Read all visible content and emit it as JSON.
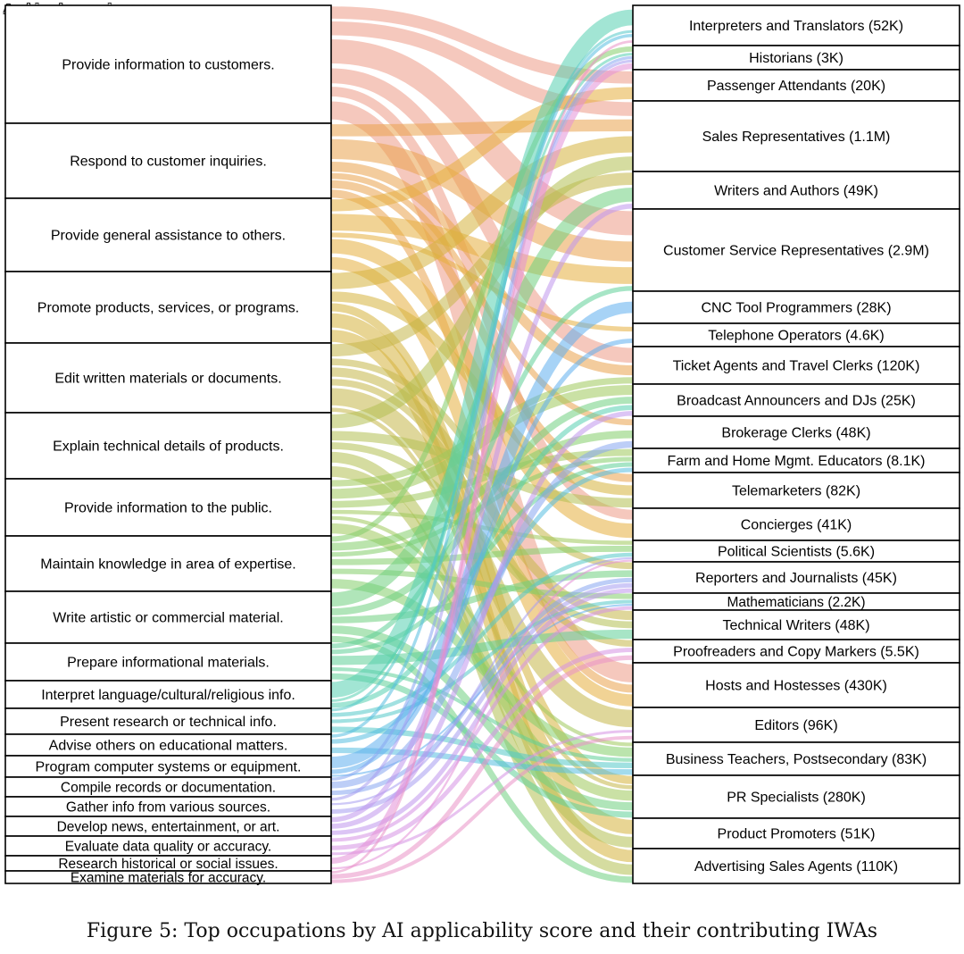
{
  "watermark": "Archived on meiguo.com",
  "caption": "Figure 5: Top occupations by AI applicability score and their contributing IWAs",
  "iwas": [
    {
      "label": "Provide information to customers.",
      "color": "#ec9a86"
    },
    {
      "label": "Respond to customer inquiries.",
      "color": "#e9a34c"
    },
    {
      "label": "Provide general assistance to others.",
      "color": "#e5ae3e"
    },
    {
      "label": "Promote products, services, or programs.",
      "color": "#d5b23d"
    },
    {
      "label": "Edit written materials or documents.",
      "color": "#c4b748"
    },
    {
      "label": "Explain technical details of products.",
      "color": "#b2c052"
    },
    {
      "label": "Provide information to the public.",
      "color": "#9ec85b"
    },
    {
      "label": "Maintain knowledge in area of expertise.",
      "color": "#84cd6a"
    },
    {
      "label": "Write artistic or commercial material.",
      "color": "#6fcf7f"
    },
    {
      "label": "Prepare informational materials.",
      "color": "#5fd098"
    },
    {
      "label": "Interpret language/cultural/religious info.",
      "color": "#56cfb1"
    },
    {
      "label": "Present research or technical info.",
      "color": "#54c9c9"
    },
    {
      "label": "Advise others on educational matters.",
      "color": "#55bde0"
    },
    {
      "label": "Program computer systems or equipment.",
      "color": "#5eaeee"
    },
    {
      "label": "Compile records or documentation.",
      "color": "#86a5f1"
    },
    {
      "label": "Gather info from various sources.",
      "color": "#a69cf0"
    },
    {
      "label": "Develop news, entertainment, or art.",
      "color": "#c096ec"
    },
    {
      "label": "Evaluate data quality or accuracy.",
      "color": "#d592e4"
    },
    {
      "label": "Research historical or social issues.",
      "color": "#e38fd7"
    },
    {
      "label": "Examine materials for accuracy.",
      "color": "#ea92c6"
    }
  ],
  "occupations": [
    {
      "label": "Interpreters and Translators (52K)"
    },
    {
      "label": "Historians (3K)"
    },
    {
      "label": "Passenger Attendants (20K)"
    },
    {
      "label": "Sales Representatives (1.1M)"
    },
    {
      "label": "Writers and Authors (49K)"
    },
    {
      "label": "Customer Service Representatives (2.9M)"
    },
    {
      "label": "CNC Tool Programmers (28K)"
    },
    {
      "label": "Telephone Operators (4.6K)"
    },
    {
      "label": "Ticket Agents and Travel Clerks (120K)"
    },
    {
      "label": "Broadcast Announcers and DJs (25K)"
    },
    {
      "label": "Brokerage Clerks (48K)"
    },
    {
      "label": "Farm and Home Mgmt. Educators (8.1K)"
    },
    {
      "label": "Telemarketers (82K)"
    },
    {
      "label": "Concierges (41K)"
    },
    {
      "label": "Political Scientists (5.6K)"
    },
    {
      "label": "Reporters and Journalists (45K)"
    },
    {
      "label": "Mathematicians (2.2K)"
    },
    {
      "label": "Technical Writers (48K)"
    },
    {
      "label": "Proofreaders and Copy Markers (5.5K)"
    },
    {
      "label": "Hosts and Hostesses (430K)"
    },
    {
      "label": "Editors (96K)"
    },
    {
      "label": "Business Teachers, Postsecondary (83K)"
    },
    {
      "label": "PR Specialists (280K)"
    },
    {
      "label": "Product Promoters (51K)"
    },
    {
      "label": "Advertising Sales Agents (110K)"
    }
  ],
  "links": [
    {
      "from": 0,
      "to": 2,
      "weight": 5
    },
    {
      "from": 0,
      "to": 3,
      "weight": 6
    },
    {
      "from": 0,
      "to": 5,
      "weight": 10
    },
    {
      "from": 0,
      "to": 8,
      "weight": 7
    },
    {
      "from": 0,
      "to": 19,
      "weight": 9
    },
    {
      "from": 0,
      "to": 13,
      "weight": 4
    },
    {
      "from": 1,
      "to": 3,
      "weight": 6
    },
    {
      "from": 1,
      "to": 5,
      "weight": 10
    },
    {
      "from": 1,
      "to": 8,
      "weight": 5
    },
    {
      "from": 1,
      "to": 12,
      "weight": 4
    },
    {
      "from": 1,
      "to": 19,
      "weight": 4
    },
    {
      "from": 1,
      "to": 10,
      "weight": 3
    },
    {
      "from": 2,
      "to": 2,
      "weight": 5
    },
    {
      "from": 2,
      "to": 5,
      "weight": 7
    },
    {
      "from": 2,
      "to": 13,
      "weight": 6
    },
    {
      "from": 2,
      "to": 19,
      "weight": 6
    },
    {
      "from": 2,
      "to": 7,
      "weight": 2
    },
    {
      "from": 3,
      "to": 3,
      "weight": 8
    },
    {
      "from": 3,
      "to": 12,
      "weight": 5
    },
    {
      "from": 3,
      "to": 23,
      "weight": 7
    },
    {
      "from": 3,
      "to": 24,
      "weight": 6
    },
    {
      "from": 3,
      "to": 22,
      "weight": 4
    },
    {
      "from": 4,
      "to": 4,
      "weight": 5
    },
    {
      "from": 4,
      "to": 20,
      "weight": 7
    },
    {
      "from": 4,
      "to": 17,
      "weight": 4
    },
    {
      "from": 4,
      "to": 18,
      "weight": 3
    },
    {
      "from": 4,
      "to": 15,
      "weight": 3
    },
    {
      "from": 4,
      "to": 22,
      "weight": 2
    },
    {
      "from": 5,
      "to": 3,
      "weight": 6
    },
    {
      "from": 5,
      "to": 23,
      "weight": 5
    },
    {
      "from": 5,
      "to": 24,
      "weight": 5
    },
    {
      "from": 5,
      "to": 12,
      "weight": 4
    },
    {
      "from": 5,
      "to": 17,
      "weight": 3
    },
    {
      "from": 6,
      "to": 11,
      "weight": 3
    },
    {
      "from": 6,
      "to": 9,
      "weight": 4
    },
    {
      "from": 6,
      "to": 22,
      "weight": 5
    },
    {
      "from": 6,
      "to": 14,
      "weight": 2
    },
    {
      "from": 6,
      "to": 8,
      "weight": 3
    },
    {
      "from": 6,
      "to": 21,
      "weight": 2
    },
    {
      "from": 7,
      "to": 21,
      "weight": 5
    },
    {
      "from": 7,
      "to": 14,
      "weight": 3
    },
    {
      "from": 7,
      "to": 16,
      "weight": 3
    },
    {
      "from": 7,
      "to": 1,
      "weight": 2
    },
    {
      "from": 7,
      "to": 11,
      "weight": 2
    },
    {
      "from": 7,
      "to": 10,
      "weight": 3
    },
    {
      "from": 8,
      "to": 4,
      "weight": 6
    },
    {
      "from": 8,
      "to": 9,
      "weight": 3
    },
    {
      "from": 8,
      "to": 22,
      "weight": 4
    },
    {
      "from": 8,
      "to": 24,
      "weight": 3
    },
    {
      "from": 8,
      "to": 15,
      "weight": 3
    },
    {
      "from": 9,
      "to": 17,
      "weight": 4
    },
    {
      "from": 9,
      "to": 22,
      "weight": 3
    },
    {
      "from": 9,
      "to": 21,
      "weight": 2
    },
    {
      "from": 9,
      "to": 11,
      "weight": 2
    },
    {
      "from": 9,
      "to": 5,
      "weight": 2
    },
    {
      "from": 10,
      "to": 0,
      "weight": 6
    },
    {
      "from": 10,
      "to": 1,
      "weight": 1
    },
    {
      "from": 10,
      "to": 9,
      "weight": 2
    },
    {
      "from": 11,
      "to": 14,
      "weight": 2
    },
    {
      "from": 11,
      "to": 21,
      "weight": 3
    },
    {
      "from": 11,
      "to": 16,
      "weight": 2
    },
    {
      "from": 11,
      "to": 0,
      "weight": 1
    },
    {
      "from": 12,
      "to": 21,
      "weight": 3
    },
    {
      "from": 12,
      "to": 11,
      "weight": 2
    },
    {
      "from": 12,
      "to": 0,
      "weight": 1
    },
    {
      "from": 13,
      "to": 6,
      "weight": 5
    },
    {
      "from": 13,
      "to": 7,
      "weight": 2
    },
    {
      "from": 13,
      "to": 16,
      "weight": 1
    },
    {
      "from": 14,
      "to": 15,
      "weight": 2
    },
    {
      "from": 14,
      "to": 1,
      "weight": 1
    },
    {
      "from": 14,
      "to": 10,
      "weight": 2
    },
    {
      "from": 15,
      "to": 15,
      "weight": 2
    },
    {
      "from": 15,
      "to": 14,
      "weight": 1
    },
    {
      "from": 15,
      "to": 1,
      "weight": 1
    },
    {
      "from": 16,
      "to": 9,
      "weight": 2
    },
    {
      "from": 16,
      "to": 15,
      "weight": 2
    },
    {
      "from": 16,
      "to": 4,
      "weight": 2
    },
    {
      "from": 17,
      "to": 16,
      "weight": 2
    },
    {
      "from": 17,
      "to": 18,
      "weight": 2
    },
    {
      "from": 17,
      "to": 20,
      "weight": 1
    },
    {
      "from": 18,
      "to": 1,
      "weight": 2
    },
    {
      "from": 18,
      "to": 14,
      "weight": 1
    },
    {
      "from": 19,
      "to": 18,
      "weight": 4
    },
    {
      "from": 19,
      "to": 20,
      "weight": 3
    },
    {
      "from": 19,
      "to": 0,
      "weight": 2
    }
  ]
}
